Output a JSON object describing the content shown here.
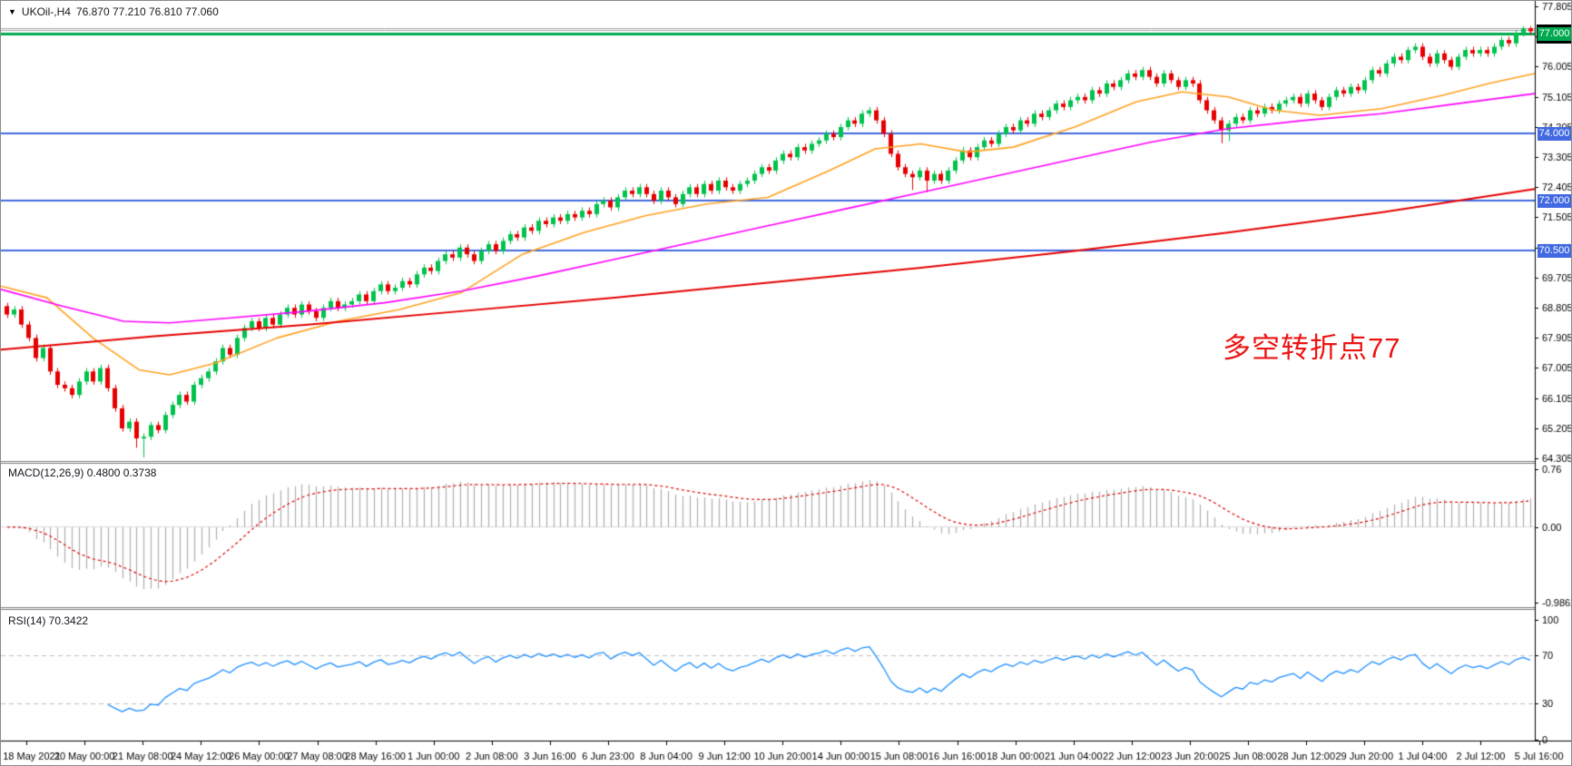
{
  "title": {
    "symbol_period": "UKOil-,H4",
    "ohlc_text": "76.870 77.210 76.810 77.060",
    "open": "76.870",
    "high": "77.210",
    "low": "76.810",
    "close": "77.060"
  },
  "annotation": {
    "text": "多空转折点77",
    "color": "#ee1414"
  },
  "panes": {
    "macd": {
      "label": "MACD(12,26,9) 0.4800 0.3738",
      "axis_labels": [
        "0.76",
        "0.00",
        "-0.9862"
      ]
    },
    "rsi": {
      "label": "RSI(14) 70.3422",
      "axis_labels": [
        "100",
        "70",
        "30",
        "0"
      ]
    }
  },
  "line_labels": {
    "l77": "77.000",
    "l74": "74.000",
    "l72": "72.000",
    "l705": "70.500"
  },
  "colors": {
    "candle_up": "#00c24d",
    "candle_down": "#e60000",
    "ma_fast": "#ffa21f",
    "ma_mid": "#ff00ff",
    "ma_slow": "#e60000",
    "hline_green": "#00a94f",
    "hline_blue": "#4169e1",
    "bid_line": "#a8a8a8",
    "macd_hist": "#b0b0b0",
    "macd_signal": "#e00000",
    "rsi_line": "#1e90ff",
    "rsi_levels": "#c0c0c0",
    "axis_text": "#000000",
    "separator": "#7a7a7a"
  },
  "chart_data": {
    "type": "candlestick",
    "symbol": "UKOil-",
    "timeframe": "H4",
    "title": "UKOil-,H4  76.870 77.210 76.810 77.060",
    "price_axis": {
      "min": 64.305,
      "max": 77.805,
      "tick_step": 0.9,
      "tick_labels": [
        "77.805",
        "76.905",
        "76.005",
        "75.105",
        "74.205",
        "73.305",
        "72.405",
        "71.505",
        "70.605",
        "69.705",
        "68.805",
        "67.905",
        "67.005",
        "66.105",
        "65.205",
        "64.305"
      ]
    },
    "horizontal_lines": [
      {
        "price": 77.0,
        "label": "77.000",
        "color": "#00a94f",
        "width": 3
      },
      {
        "price": 74.0,
        "label": "74.000",
        "color": "#4169e1",
        "width": 2
      },
      {
        "price": 72.0,
        "label": "72.000",
        "color": "#4169e1",
        "width": 2
      },
      {
        "price": 70.5,
        "label": "70.500",
        "color": "#4169e1",
        "width": 2
      }
    ],
    "bid_lines": [
      77.16,
      77.1
    ],
    "candles": {
      "first_open": 68.85,
      "default_wick": 0.1,
      "closes": [
        68.6,
        68.75,
        68.3,
        67.9,
        67.3,
        67.6,
        66.9,
        66.5,
        66.4,
        66.2,
        66.6,
        66.9,
        66.6,
        67.0,
        66.4,
        65.8,
        65.2,
        65.4,
        64.9,
        64.95,
        65.3,
        65.15,
        65.6,
        65.9,
        66.2,
        66.0,
        66.5,
        66.7,
        66.9,
        67.2,
        67.6,
        67.4,
        67.9,
        68.2,
        68.4,
        68.2,
        68.5,
        68.3,
        68.6,
        68.8,
        68.6,
        68.9,
        68.7,
        68.5,
        68.8,
        69.0,
        68.8,
        68.9,
        69.0,
        69.2,
        69.0,
        69.3,
        69.5,
        69.3,
        69.4,
        69.6,
        69.5,
        69.8,
        70.0,
        69.9,
        70.2,
        70.4,
        70.3,
        70.6,
        70.4,
        70.2,
        70.5,
        70.7,
        70.5,
        70.8,
        71.0,
        70.9,
        71.2,
        71.1,
        71.4,
        71.3,
        71.5,
        71.4,
        71.6,
        71.5,
        71.7,
        71.6,
        71.9,
        72.0,
        71.8,
        72.1,
        72.3,
        72.2,
        72.4,
        72.2,
        72.0,
        72.3,
        72.1,
        71.9,
        72.2,
        72.4,
        72.2,
        72.5,
        72.3,
        72.6,
        72.4,
        72.3,
        72.5,
        72.6,
        72.8,
        73.0,
        72.9,
        73.2,
        73.4,
        73.3,
        73.6,
        73.5,
        73.7,
        73.8,
        74.0,
        73.9,
        74.2,
        74.4,
        74.3,
        74.6,
        74.7,
        74.4,
        74.0,
        73.4,
        73.0,
        72.8,
        72.7,
        72.9,
        72.6,
        72.8,
        72.6,
        72.9,
        73.2,
        73.5,
        73.3,
        73.6,
        73.8,
        73.7,
        74.0,
        74.2,
        74.1,
        74.4,
        74.3,
        74.6,
        74.5,
        74.7,
        74.9,
        74.8,
        75.0,
        75.1,
        75.0,
        75.3,
        75.2,
        75.5,
        75.4,
        75.6,
        75.8,
        75.7,
        75.9,
        75.7,
        75.5,
        75.8,
        75.6,
        75.4,
        75.6,
        75.5,
        75.0,
        74.7,
        74.4,
        74.1,
        74.3,
        74.5,
        74.4,
        74.7,
        74.6,
        74.8,
        74.7,
        74.9,
        75.0,
        75.1,
        74.9,
        75.2,
        75.0,
        74.8,
        75.1,
        75.3,
        75.2,
        75.4,
        75.3,
        75.6,
        75.9,
        75.8,
        76.1,
        76.3,
        76.2,
        76.5,
        76.6,
        76.3,
        76.1,
        76.4,
        76.2,
        76.0,
        76.3,
        76.5,
        76.4,
        76.5,
        76.4,
        76.6,
        76.8,
        76.7,
        77.0,
        77.15,
        77.06
      ],
      "low_overrides": {
        "18": 64.62,
        "19": 64.33,
        "126": 72.32,
        "128": 72.25,
        "169": 73.72,
        "170": 73.78
      },
      "high_overrides": {
        "211": 77.21,
        "212": 77.21
      }
    },
    "moving_averages": [
      {
        "name": "fast-ma",
        "color": "#ffa21f",
        "width": 1.6,
        "points": [
          [
            0,
            69.45
          ],
          [
            0.03,
            69.1
          ],
          [
            0.06,
            67.9
          ],
          [
            0.09,
            66.95
          ],
          [
            0.11,
            66.8
          ],
          [
            0.14,
            67.15
          ],
          [
            0.18,
            67.9
          ],
          [
            0.22,
            68.4
          ],
          [
            0.26,
            68.75
          ],
          [
            0.3,
            69.25
          ],
          [
            0.34,
            70.4
          ],
          [
            0.38,
            71.05
          ],
          [
            0.42,
            71.55
          ],
          [
            0.46,
            71.9
          ],
          [
            0.5,
            72.1
          ],
          [
            0.54,
            72.9
          ],
          [
            0.57,
            73.55
          ],
          [
            0.6,
            73.7
          ],
          [
            0.63,
            73.45
          ],
          [
            0.66,
            73.6
          ],
          [
            0.7,
            74.2
          ],
          [
            0.74,
            74.95
          ],
          [
            0.77,
            75.25
          ],
          [
            0.8,
            75.1
          ],
          [
            0.83,
            74.7
          ],
          [
            0.86,
            74.55
          ],
          [
            0.9,
            74.75
          ],
          [
            0.94,
            75.15
          ],
          [
            0.97,
            75.5
          ],
          [
            1.0,
            75.8
          ]
        ]
      },
      {
        "name": "mid-ma",
        "color": "#ff00ff",
        "width": 1.6,
        "points": [
          [
            0,
            69.35
          ],
          [
            0.04,
            68.85
          ],
          [
            0.08,
            68.4
          ],
          [
            0.11,
            68.35
          ],
          [
            0.15,
            68.5
          ],
          [
            0.2,
            68.7
          ],
          [
            0.25,
            68.95
          ],
          [
            0.3,
            69.3
          ],
          [
            0.35,
            69.75
          ],
          [
            0.4,
            70.25
          ],
          [
            0.45,
            70.75
          ],
          [
            0.5,
            71.25
          ],
          [
            0.55,
            71.75
          ],
          [
            0.6,
            72.25
          ],
          [
            0.65,
            72.75
          ],
          [
            0.7,
            73.25
          ],
          [
            0.75,
            73.75
          ],
          [
            0.8,
            74.15
          ],
          [
            0.85,
            74.4
          ],
          [
            0.9,
            74.6
          ],
          [
            0.95,
            74.9
          ],
          [
            1.0,
            75.2
          ]
        ]
      },
      {
        "name": "slow-ma",
        "color": "#e60000",
        "width": 2,
        "points": [
          [
            0,
            67.55
          ],
          [
            0.1,
            67.95
          ],
          [
            0.2,
            68.3
          ],
          [
            0.3,
            68.7
          ],
          [
            0.4,
            69.1
          ],
          [
            0.5,
            69.55
          ],
          [
            0.6,
            70.0
          ],
          [
            0.7,
            70.5
          ],
          [
            0.8,
            71.05
          ],
          [
            0.9,
            71.65
          ],
          [
            1.0,
            72.35
          ]
        ]
      }
    ],
    "macd": {
      "fast": 12,
      "slow": 26,
      "signal": 9,
      "current_hist": 0.48,
      "current_signal": 0.3738,
      "axis_max": 0.76,
      "axis_min": -0.9862,
      "axis_zero": 0.0
    },
    "rsi": {
      "period": 14,
      "current": 70.3422,
      "levels": [
        70,
        30
      ],
      "axis_max": 100,
      "axis_min": 0
    },
    "x_axis": {
      "labels": [
        "18 May 2021",
        "20 May 00:00",
        "21 May 08:00",
        "24 May 12:00",
        "26 May 00:00",
        "27 May 08:00",
        "28 May 16:00",
        "1 Jun 00:00",
        "2 Jun 08:00",
        "3 Jun 16:00",
        "6 Jun 23:00",
        "8 Jun 04:00",
        "9 Jun 12:00",
        "10 Jun 20:00",
        "14 Jun 00:00",
        "15 Jun 08:00",
        "16 Jun 16:00",
        "18 Jun 00:00",
        "21 Jun 04:00",
        "22 Jun 12:00",
        "23 Jun 20:00",
        "25 Jun 08:00",
        "28 Jun 12:00",
        "29 Jun 20:00",
        "1 Jul 04:00",
        "2 Jul 12:00",
        "5 Jul 16:00"
      ],
      "first_center": 28,
      "spacing": 64.1
    }
  }
}
